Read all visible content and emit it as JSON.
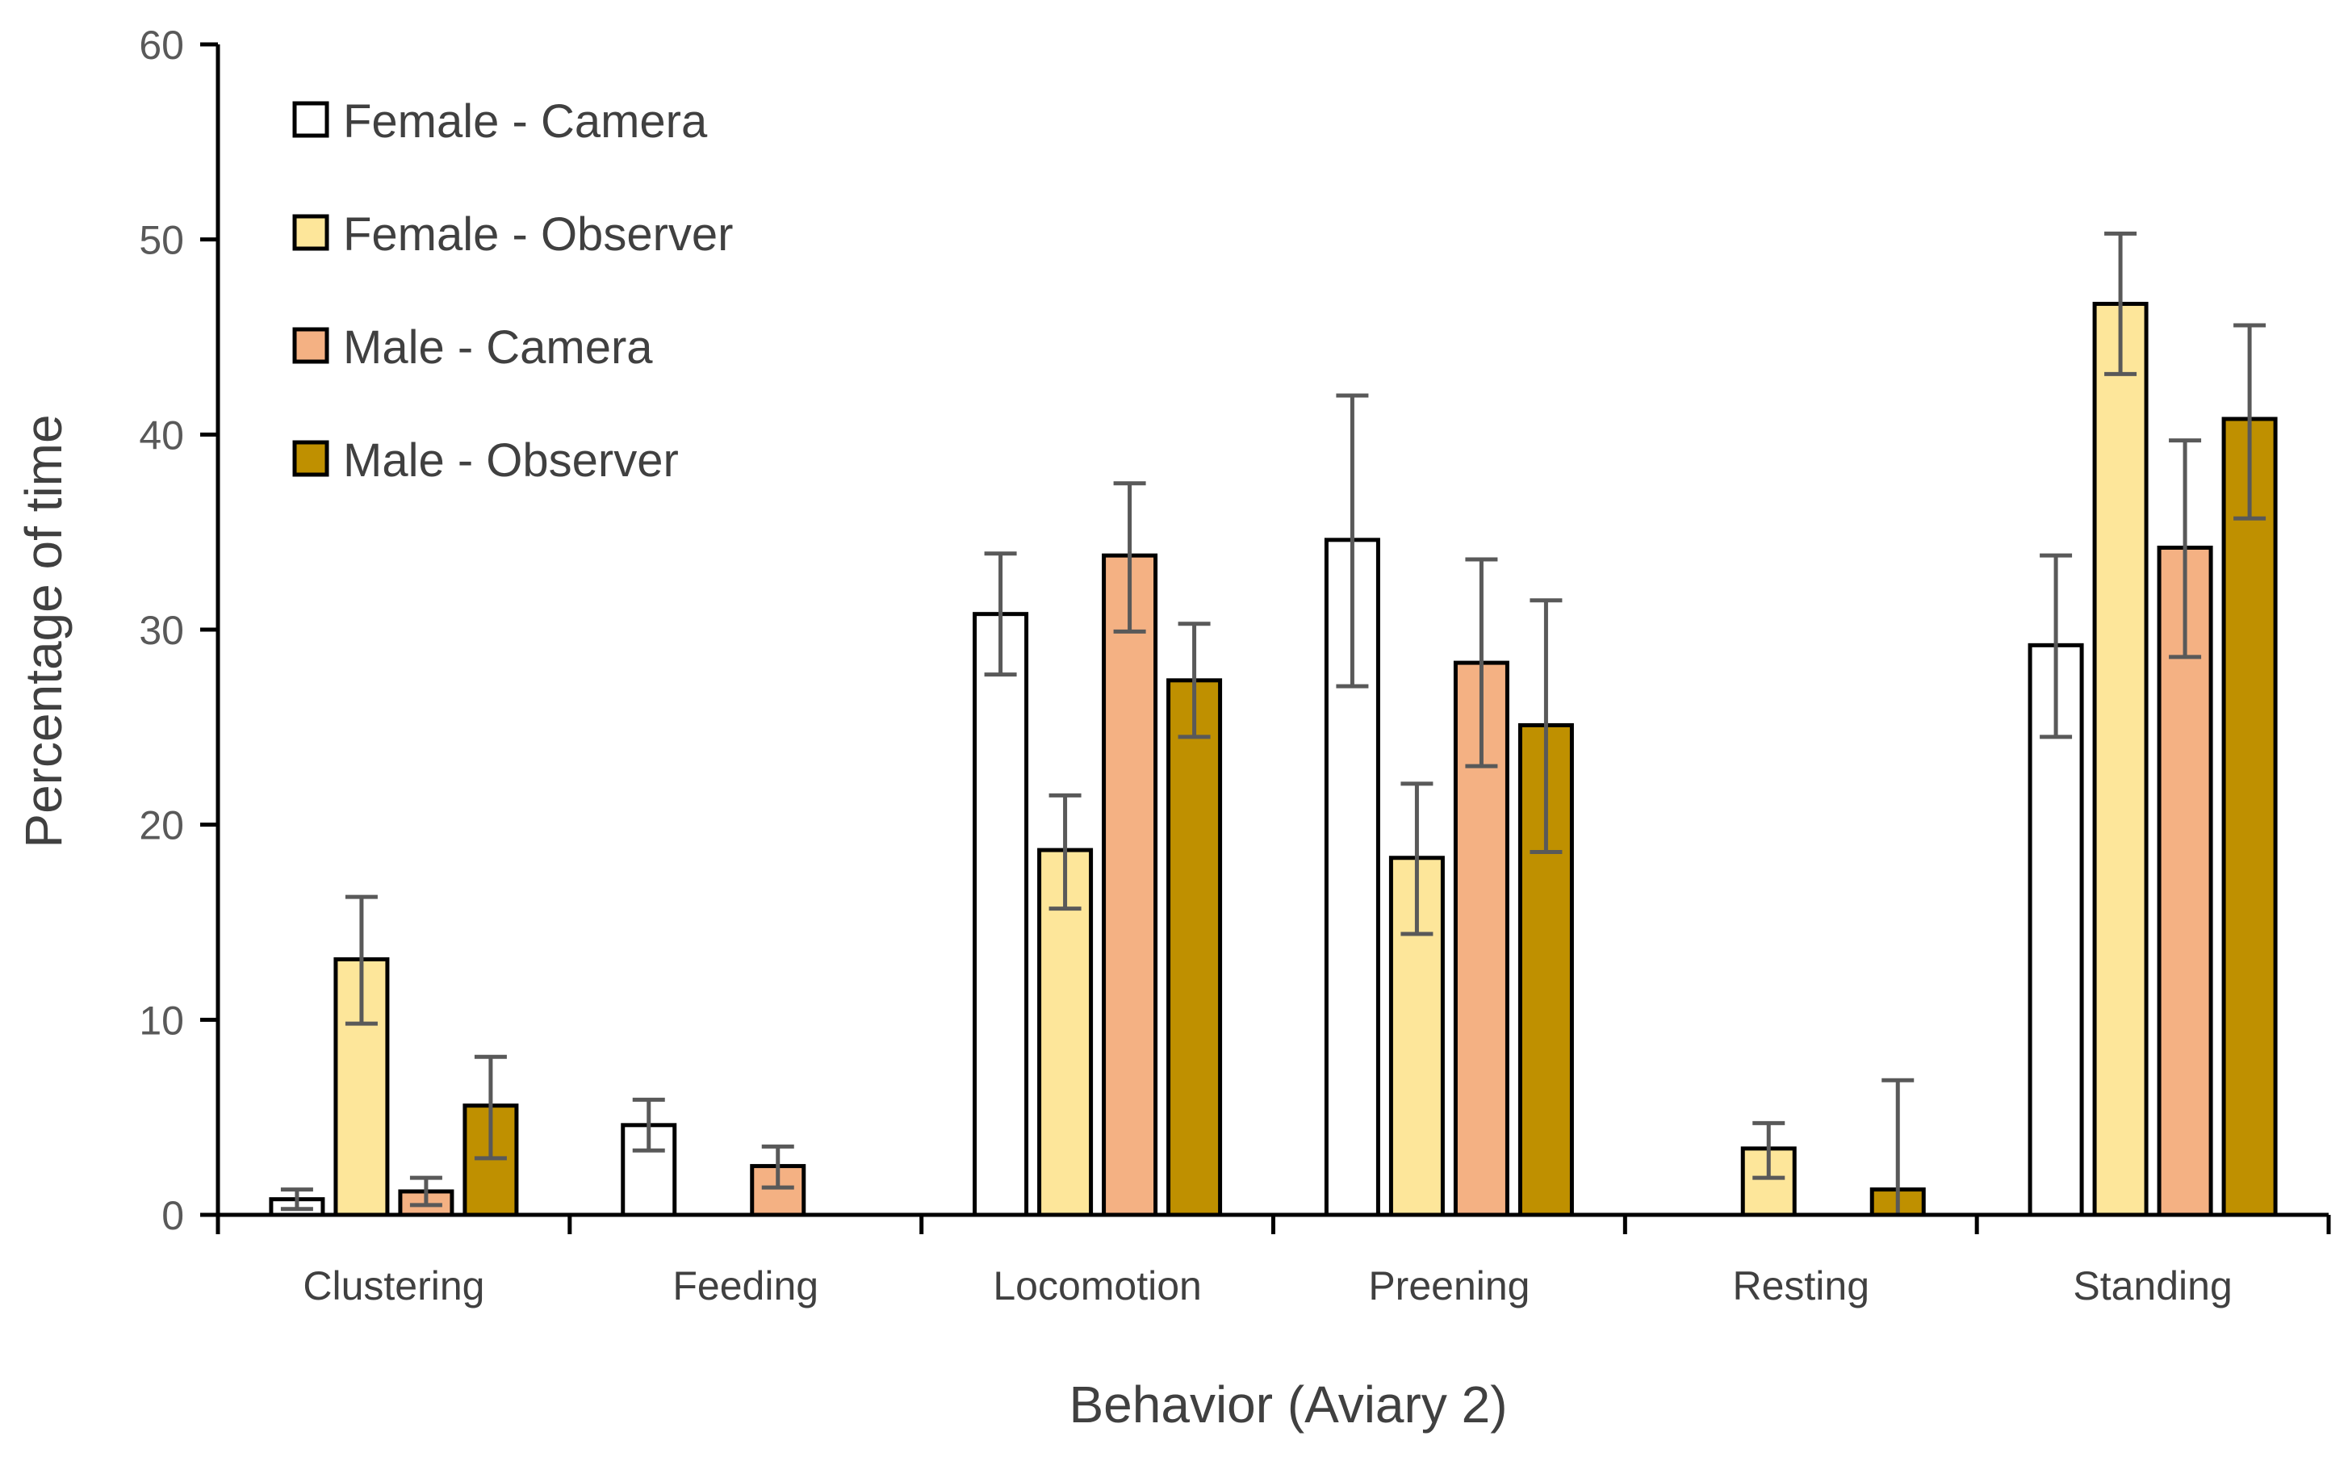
{
  "chart_data": {
    "type": "bar",
    "title": "",
    "xlabel": "Behavior (Aviary 2)",
    "ylabel": "Percentage of time",
    "ylim": [
      0,
      60
    ],
    "yticks": [
      0,
      10,
      20,
      30,
      40,
      50,
      60
    ],
    "grid": false,
    "legend_position": "top-left",
    "categories": [
      "Clustering",
      "Feeding",
      "Locomotion",
      "Preening",
      "Resting",
      "Standing"
    ],
    "series": [
      {
        "name": "Female - Camera",
        "color": "#ffffff",
        "values": [
          0.8,
          4.6,
          30.8,
          34.6,
          0,
          29.2
        ],
        "err_low": [
          0.3,
          3.3,
          27.7,
          27.1,
          0,
          24.5
        ],
        "err_high": [
          1.3,
          5.9,
          33.9,
          42.0,
          0,
          33.8
        ]
      },
      {
        "name": "Female - Observer",
        "color": "#fde69a",
        "values": [
          13.1,
          0,
          18.7,
          18.3,
          3.4,
          46.7
        ],
        "err_low": [
          9.8,
          0,
          15.7,
          14.4,
          1.9,
          43.1
        ],
        "err_high": [
          16.3,
          0,
          21.5,
          22.1,
          4.7,
          50.3
        ]
      },
      {
        "name": "Male - Camera",
        "color": "#f4b183",
        "values": [
          1.2,
          2.5,
          33.8,
          28.3,
          0,
          34.2
        ],
        "err_low": [
          0.5,
          1.4,
          29.9,
          23.0,
          0,
          28.6
        ],
        "err_high": [
          1.9,
          3.5,
          37.5,
          33.6,
          0,
          39.7
        ]
      },
      {
        "name": "Male - Observer",
        "color": "#bf9000",
        "values": [
          5.6,
          0,
          27.4,
          25.1,
          1.3,
          40.8
        ],
        "err_low": [
          2.9,
          0,
          24.5,
          18.6,
          0,
          35.7
        ],
        "err_high": [
          8.1,
          0,
          30.3,
          31.5,
          6.9,
          45.6
        ]
      }
    ]
  }
}
